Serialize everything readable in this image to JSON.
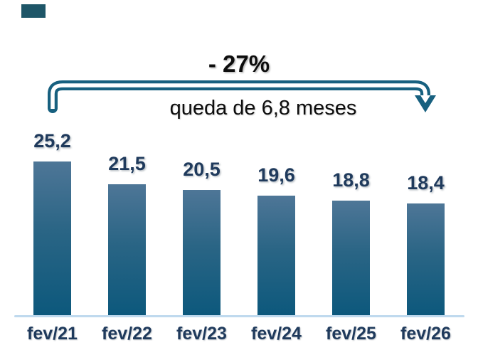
{
  "annotations": {
    "percent_change": "- 27%",
    "drop_text": "queda de 6,8 meses"
  },
  "chart_data": {
    "type": "bar",
    "categories": [
      "fev/21",
      "fev/22",
      "fev/23",
      "fev/24",
      "fev/25",
      "fev/26"
    ],
    "values": [
      25.2,
      21.5,
      20.5,
      19.6,
      18.8,
      18.4
    ],
    "value_labels": [
      "25,2",
      "21,5",
      "20,5",
      "19,6",
      "18,8",
      "18,4"
    ],
    "title": "",
    "xlabel": "",
    "ylabel": "",
    "ylim": [
      0,
      25.2
    ],
    "grid": false,
    "legend": false,
    "annotations": [
      "- 27%",
      "queda de 6,8 meses"
    ]
  },
  "colors": {
    "accent_teal": "#17607f",
    "bar_top": "#4e7697",
    "bar_bottom": "#0c587c",
    "label_navy": "#1f3a5c",
    "axis_line": "#bfd9ee",
    "annotation_text": "#0d0d0d",
    "corner_block": "#1e5668"
  }
}
